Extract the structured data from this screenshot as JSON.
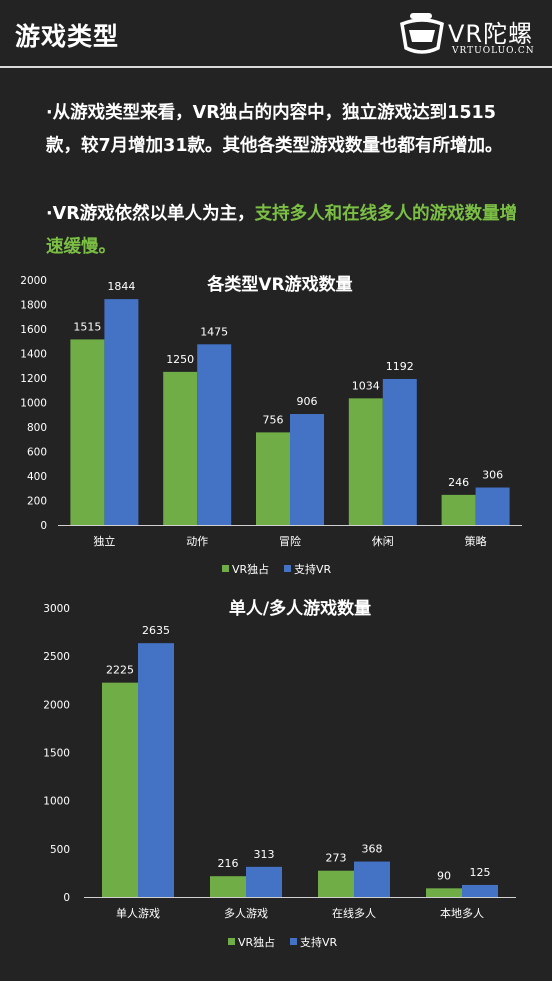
{
  "header": {
    "title": "游戏类型",
    "logo_text": "VR陀螺",
    "logo_sub": "VRTUOLUO.CN"
  },
  "body_text": {
    "p1": "·从游戏类型来看，VR独占的内容中，独立游戏达到1515款，较7月增加31款。其他各类型游戏数量也都有所增加。",
    "p2_plain": "·VR游戏依然以单人为主，",
    "p2_highlight": "支持多人和在线多人的游戏数量增速缓慢。"
  },
  "colors": {
    "green": "#70ad47",
    "blue": "#4472c4",
    "highlight": "#7bc044",
    "background": "#232323"
  },
  "chart_data": [
    {
      "type": "bar",
      "title": "各类型VR游戏数量",
      "categories": [
        "独立",
        "动作",
        "冒险",
        "休闲",
        "策略"
      ],
      "series": [
        {
          "name": "VR独占",
          "values": [
            1515,
            1250,
            756,
            1034,
            246
          ]
        },
        {
          "name": "支持VR",
          "values": [
            1844,
            1475,
            906,
            1192,
            306
          ]
        }
      ],
      "yticks": [
        0,
        200,
        400,
        600,
        800,
        1000,
        1200,
        1400,
        1600,
        1800,
        2000
      ],
      "ylim": [
        0,
        2000
      ],
      "grid": false,
      "legend": "bottom"
    },
    {
      "type": "bar",
      "title": "单人/多人游戏数量",
      "categories": [
        "单人游戏",
        "多人游戏",
        "在线多人",
        "本地多人"
      ],
      "series": [
        {
          "name": "VR独占",
          "values": [
            2225,
            216,
            273,
            90
          ]
        },
        {
          "name": "支持VR",
          "values": [
            2635,
            313,
            368,
            125
          ]
        }
      ],
      "yticks": [
        0,
        500,
        1000,
        1500,
        2000,
        2500,
        3000
      ],
      "ylim": [
        0,
        3000
      ],
      "grid": false,
      "legend": "bottom"
    }
  ]
}
